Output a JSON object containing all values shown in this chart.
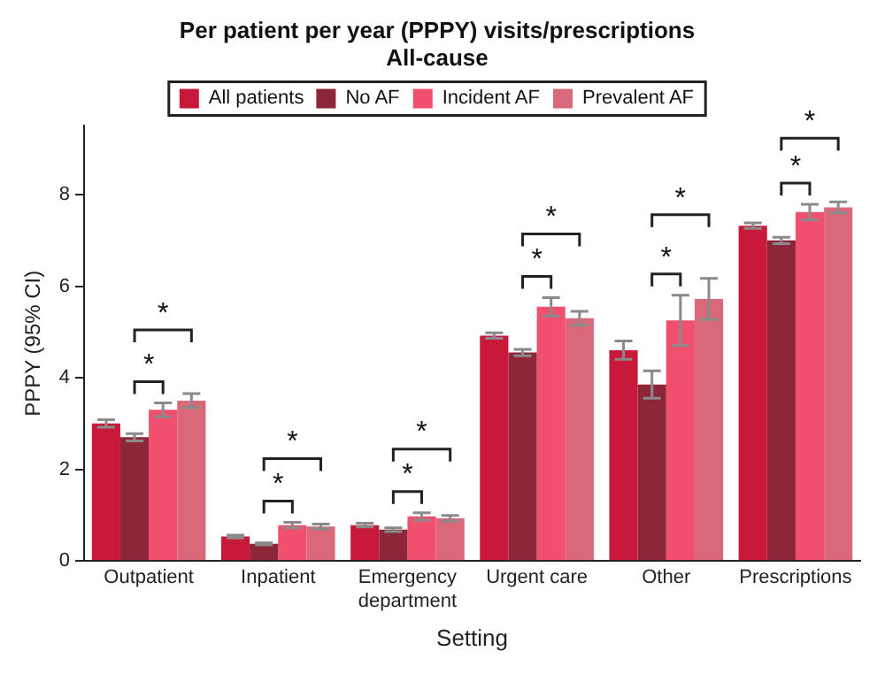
{
  "chart_data": {
    "type": "bar",
    "title": "Per patient per year (PPPY) visits/prescriptions",
    "subtitle": "All-cause",
    "xlabel": "Setting",
    "ylabel": "PPPY (95% CI)",
    "categories": [
      "Outpatient",
      "Inpatient",
      "Emergency department",
      "Urgent care",
      "Other",
      "Prescriptions"
    ],
    "series": [
      {
        "name": "All patients",
        "color": "#c8193a",
        "values": [
          3.0,
          0.53,
          0.78,
          4.92,
          4.6,
          7.32
        ],
        "errors": [
          0.08,
          0.03,
          0.04,
          0.06,
          0.2,
          0.06
        ]
      },
      {
        "name": "No AF",
        "color": "#8c2638",
        "values": [
          2.7,
          0.37,
          0.68,
          4.55,
          3.85,
          7.0
        ],
        "errors": [
          0.08,
          0.02,
          0.04,
          0.07,
          0.3,
          0.07
        ]
      },
      {
        "name": "Incident AF",
        "color": "#f0506e",
        "values": [
          3.3,
          0.78,
          0.97,
          5.55,
          5.25,
          7.62
        ],
        "errors": [
          0.15,
          0.06,
          0.08,
          0.2,
          0.55,
          0.17
        ]
      },
      {
        "name": "Prevalent AF",
        "color": "#d8687a",
        "values": [
          3.5,
          0.75,
          0.93,
          5.3,
          5.72,
          7.72
        ],
        "errors": [
          0.15,
          0.05,
          0.06,
          0.15,
          0.45,
          0.12
        ]
      }
    ],
    "annotations": [
      "*",
      "*",
      "*",
      "*",
      "*",
      "*",
      "*",
      "*",
      "*",
      "*",
      "*",
      "*"
    ],
    "ylim": [
      0,
      9.5
    ],
    "yticks": [
      0,
      2,
      4,
      6,
      8
    ],
    "grid": false,
    "legend": "top"
  }
}
